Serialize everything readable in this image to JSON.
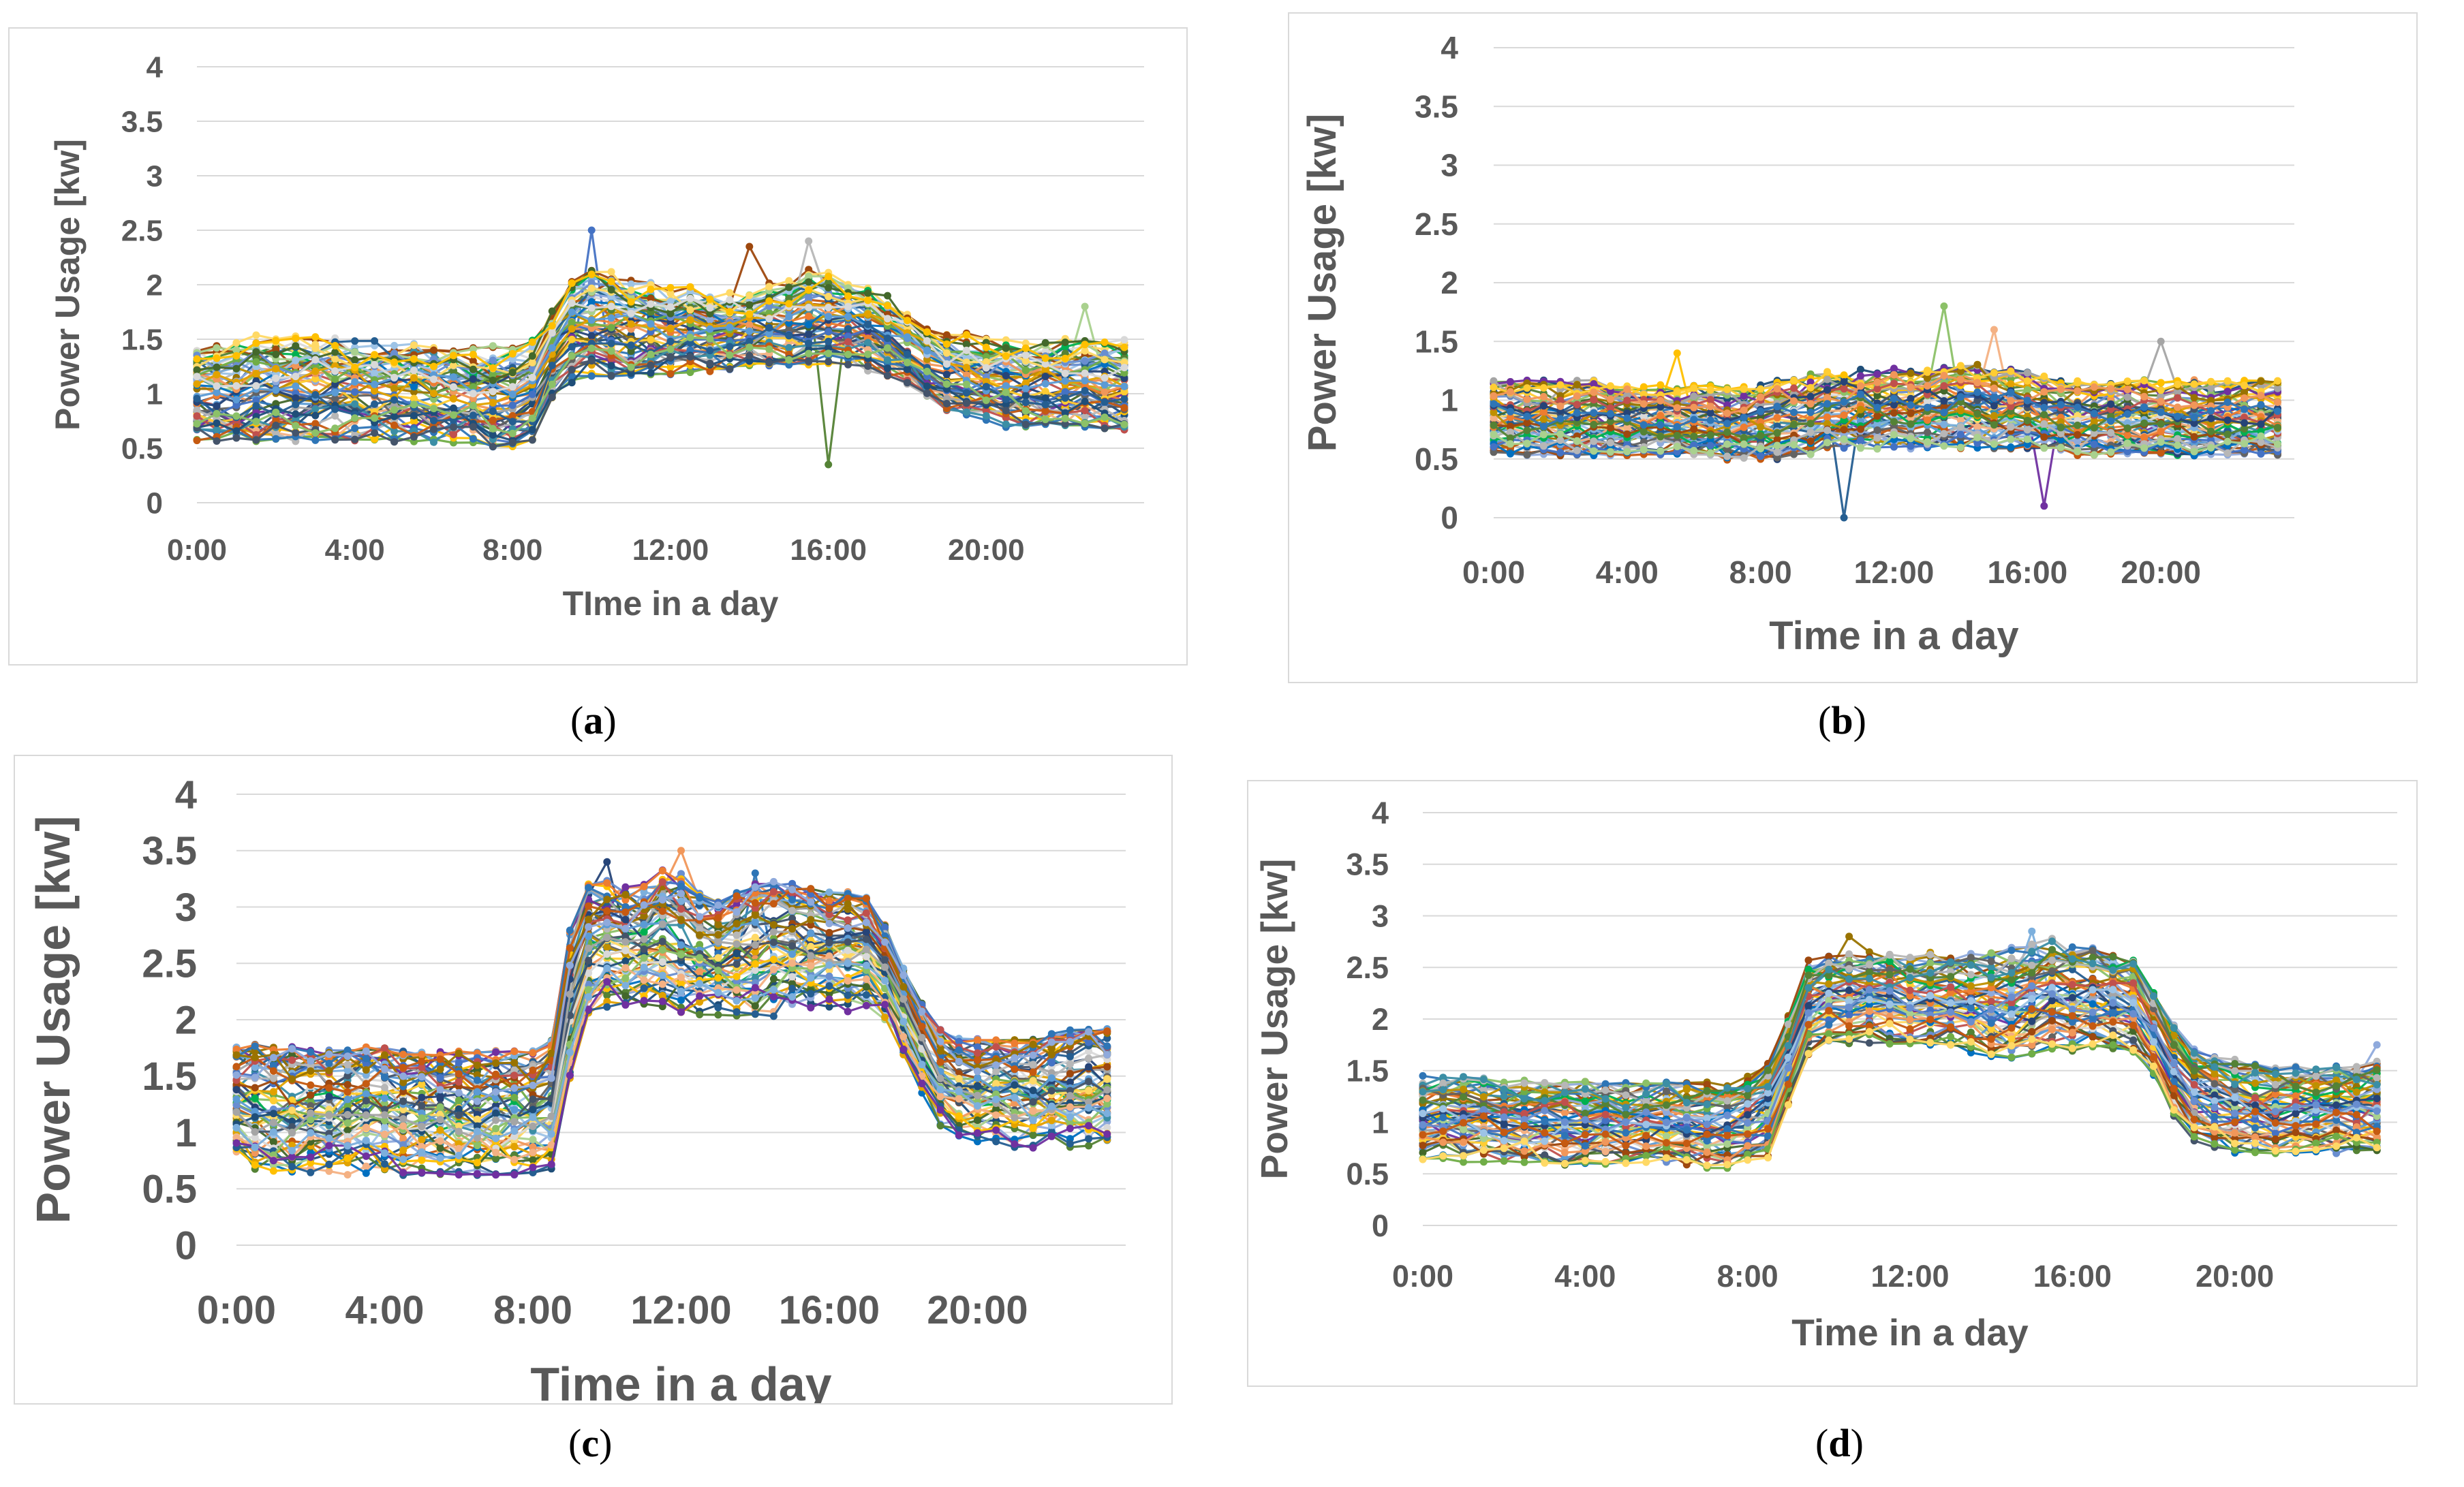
{
  "figure": {
    "captions": [
      {
        "open": "(",
        "letter": "a",
        "close": ")"
      },
      {
        "open": "(",
        "letter": "b",
        "close": ")"
      },
      {
        "open": "(",
        "letter": "c",
        "close": ")"
      },
      {
        "open": "(",
        "letter": "d",
        "close": ")"
      }
    ]
  },
  "chart_data": [
    {
      "id": "a",
      "type": "line",
      "title": "",
      "xlabel": "TIme in a day",
      "ylabel": "Power Usage [kw]",
      "ylim": [
        0,
        4
      ],
      "yticks": [
        "0",
        "0.5",
        "1",
        "1.5",
        "2",
        "2.5",
        "3",
        "3.5",
        "4"
      ],
      "xticks": [
        "0:00",
        "4:00",
        "8:00",
        "12:00",
        "16:00",
        "20:00"
      ],
      "grid": true,
      "legend": "none",
      "series_count": 60,
      "x": [
        "0:00",
        "0:30",
        "1:00",
        "1:30",
        "2:00",
        "2:30",
        "3:00",
        "3:30",
        "4:00",
        "4:30",
        "5:00",
        "5:30",
        "6:00",
        "6:30",
        "7:00",
        "7:30",
        "8:00",
        "8:30",
        "9:00",
        "9:30",
        "10:00",
        "10:30",
        "11:00",
        "11:30",
        "12:00",
        "12:30",
        "13:00",
        "13:30",
        "14:00",
        "14:30",
        "15:00",
        "15:30",
        "16:00",
        "16:30",
        "17:00",
        "17:30",
        "18:00",
        "18:30",
        "19:00",
        "19:30",
        "20:00",
        "20:30",
        "21:00",
        "21:30",
        "22:00",
        "22:30",
        "23:00",
        "23:30"
      ],
      "envelope": {
        "low": [
          0.5,
          0.5,
          0.5,
          0.5,
          0.5,
          0.5,
          0.5,
          0.5,
          0.5,
          0.5,
          0.5,
          0.5,
          0.5,
          0.5,
          0.5,
          0.45,
          0.45,
          0.5,
          0.9,
          1.05,
          1.1,
          1.1,
          1.1,
          1.1,
          1.1,
          1.15,
          1.15,
          1.15,
          1.2,
          1.2,
          1.2,
          1.2,
          1.2,
          1.2,
          1.15,
          1.1,
          1.05,
          0.9,
          0.8,
          0.75,
          0.7,
          0.65,
          0.65,
          0.65,
          0.65,
          0.65,
          0.6,
          0.6
        ],
        "mid": [
          1.05,
          1.05,
          1.05,
          1.05,
          1.05,
          1.05,
          1.05,
          1.05,
          1.05,
          1.05,
          1.05,
          1.05,
          1.0,
          1.0,
          1.0,
          1.0,
          1.0,
          1.05,
          1.35,
          1.5,
          1.55,
          1.6,
          1.6,
          1.6,
          1.6,
          1.6,
          1.6,
          1.65,
          1.65,
          1.65,
          1.7,
          1.7,
          1.7,
          1.7,
          1.65,
          1.55,
          1.45,
          1.35,
          1.25,
          1.2,
          1.15,
          1.1,
          1.1,
          1.1,
          1.1,
          1.1,
          1.1,
          1.1
        ],
        "high": [
          1.5,
          1.5,
          1.55,
          1.6,
          1.6,
          1.6,
          1.6,
          1.6,
          1.55,
          1.55,
          1.55,
          1.55,
          1.5,
          1.5,
          1.5,
          1.5,
          1.5,
          1.55,
          1.85,
          2.2,
          2.25,
          2.2,
          2.1,
          2.1,
          2.05,
          2.05,
          2.0,
          2.0,
          2.05,
          2.1,
          2.15,
          2.2,
          2.2,
          2.1,
          2.1,
          1.95,
          1.8,
          1.65,
          1.6,
          1.6,
          1.55,
          1.55,
          1.55,
          1.55,
          1.55,
          1.55,
          1.55,
          1.55
        ]
      },
      "outliers": [
        {
          "time": "10:00",
          "value": 2.5
        },
        {
          "time": "14:00",
          "value": 2.35
        },
        {
          "time": "15:30",
          "value": 2.4
        },
        {
          "time": "16:00",
          "value": 0.35
        },
        {
          "time": "22:30",
          "value": 1.8
        }
      ]
    },
    {
      "id": "b",
      "type": "line",
      "title": "",
      "xlabel": "Time in a day",
      "ylabel": "Power Usage [kw]",
      "ylim": [
        0,
        4
      ],
      "yticks": [
        "0",
        "0.5",
        "1",
        "1.5",
        "2",
        "2.5",
        "3",
        "3.5",
        "4"
      ],
      "xticks": [
        "0:00",
        "4:00",
        "8:00",
        "12:00",
        "16:00",
        "20:00"
      ],
      "grid": true,
      "legend": "none",
      "series_count": 60,
      "x": [
        "0:00",
        "0:30",
        "1:00",
        "1:30",
        "2:00",
        "2:30",
        "3:00",
        "3:30",
        "4:00",
        "4:30",
        "5:00",
        "5:30",
        "6:00",
        "6:30",
        "7:00",
        "7:30",
        "8:00",
        "8:30",
        "9:00",
        "9:30",
        "10:00",
        "10:30",
        "11:00",
        "11:30",
        "12:00",
        "12:30",
        "13:00",
        "13:30",
        "14:00",
        "14:30",
        "15:00",
        "15:30",
        "16:00",
        "16:30",
        "17:00",
        "17:30",
        "18:00",
        "18:30",
        "19:00",
        "19:30",
        "20:00",
        "20:30",
        "21:00",
        "21:30",
        "22:00",
        "22:30",
        "23:00",
        "23:30"
      ],
      "envelope": {
        "low": [
          0.5,
          0.5,
          0.5,
          0.5,
          0.5,
          0.5,
          0.5,
          0.5,
          0.5,
          0.5,
          0.5,
          0.5,
          0.5,
          0.5,
          0.45,
          0.45,
          0.45,
          0.45,
          0.5,
          0.5,
          0.55,
          0.55,
          0.55,
          0.55,
          0.55,
          0.55,
          0.55,
          0.55,
          0.55,
          0.55,
          0.55,
          0.55,
          0.55,
          0.55,
          0.55,
          0.5,
          0.5,
          0.5,
          0.5,
          0.5,
          0.5,
          0.5,
          0.5,
          0.5,
          0.5,
          0.5,
          0.5,
          0.5
        ],
        "mid": [
          0.85,
          0.85,
          0.85,
          0.85,
          0.85,
          0.85,
          0.85,
          0.85,
          0.85,
          0.85,
          0.85,
          0.85,
          0.85,
          0.85,
          0.85,
          0.85,
          0.85,
          0.85,
          0.9,
          0.9,
          0.95,
          0.95,
          0.95,
          0.95,
          0.95,
          0.95,
          0.95,
          0.95,
          0.95,
          0.95,
          0.95,
          0.95,
          0.9,
          0.9,
          0.9,
          0.85,
          0.85,
          0.85,
          0.85,
          0.85,
          0.85,
          0.85,
          0.85,
          0.85,
          0.85,
          0.85,
          0.85,
          0.85
        ],
        "high": [
          1.2,
          1.2,
          1.2,
          1.2,
          1.2,
          1.2,
          1.2,
          1.15,
          1.15,
          1.15,
          1.15,
          1.15,
          1.15,
          1.15,
          1.15,
          1.15,
          1.15,
          1.2,
          1.2,
          1.25,
          1.3,
          1.3,
          1.3,
          1.3,
          1.3,
          1.3,
          1.3,
          1.35,
          1.35,
          1.35,
          1.3,
          1.3,
          1.3,
          1.25,
          1.2,
          1.2,
          1.2,
          1.2,
          1.2,
          1.2,
          1.2,
          1.2,
          1.2,
          1.2,
          1.2,
          1.2,
          1.2,
          1.2
        ]
      },
      "outliers": [
        {
          "time": "5:30",
          "value": 1.4
        },
        {
          "time": "10:30",
          "value": 0.0
        },
        {
          "time": "13:30",
          "value": 1.8
        },
        {
          "time": "15:00",
          "value": 1.6
        },
        {
          "time": "16:30",
          "value": 0.1
        },
        {
          "time": "20:00",
          "value": 1.5
        }
      ]
    },
    {
      "id": "c",
      "type": "line",
      "title": "",
      "xlabel": "Time in a day",
      "ylabel": "Power Usage [kw]",
      "ylim": [
        0,
        4
      ],
      "yticks": [
        "0",
        "0.5",
        "1",
        "1.5",
        "2",
        "2.5",
        "3",
        "3.5",
        "4"
      ],
      "xticks": [
        "0:00",
        "4:00",
        "8:00",
        "12:00",
        "16:00",
        "20:00"
      ],
      "grid": true,
      "legend": "none",
      "series_count": 60,
      "x": [
        "0:00",
        "0:30",
        "1:00",
        "1:30",
        "2:00",
        "2:30",
        "3:00",
        "3:30",
        "4:00",
        "4:30",
        "5:00",
        "5:30",
        "6:00",
        "6:30",
        "7:00",
        "7:30",
        "8:00",
        "8:30",
        "9:00",
        "9:30",
        "10:00",
        "10:30",
        "11:00",
        "11:30",
        "12:00",
        "12:30",
        "13:00",
        "13:30",
        "14:00",
        "14:30",
        "15:00",
        "15:30",
        "16:00",
        "16:30",
        "17:00",
        "17:30",
        "18:00",
        "18:30",
        "19:00",
        "19:30",
        "20:00",
        "20:30",
        "21:00",
        "21:30",
        "22:00",
        "22:30",
        "23:00",
        "23:30"
      ],
      "envelope": {
        "low": [
          0.7,
          0.6,
          0.55,
          0.55,
          0.55,
          0.55,
          0.55,
          0.55,
          0.55,
          0.55,
          0.55,
          0.55,
          0.55,
          0.55,
          0.55,
          0.55,
          0.55,
          0.6,
          1.4,
          1.9,
          2.0,
          2.0,
          2.0,
          2.0,
          2.0,
          1.95,
          1.95,
          1.95,
          1.95,
          1.95,
          2.0,
          2.0,
          2.0,
          2.0,
          2.0,
          1.9,
          1.6,
          1.3,
          1.0,
          0.9,
          0.85,
          0.85,
          0.8,
          0.8,
          0.8,
          0.8,
          0.8,
          0.8
        ],
        "mid": [
          1.25,
          1.25,
          1.2,
          1.2,
          1.2,
          1.2,
          1.2,
          1.2,
          1.15,
          1.15,
          1.15,
          1.15,
          1.15,
          1.15,
          1.15,
          1.15,
          1.15,
          1.2,
          2.1,
          2.6,
          2.7,
          2.65,
          2.6,
          2.6,
          2.55,
          2.6,
          2.6,
          2.6,
          2.6,
          2.65,
          2.65,
          2.65,
          2.6,
          2.6,
          2.55,
          2.4,
          2.05,
          1.75,
          1.5,
          1.4,
          1.35,
          1.35,
          1.3,
          1.3,
          1.3,
          1.3,
          1.3,
          1.3
        ],
        "high": [
          1.85,
          1.85,
          1.85,
          1.85,
          1.8,
          1.8,
          1.8,
          1.85,
          1.85,
          1.8,
          1.8,
          1.8,
          1.8,
          1.8,
          1.8,
          1.8,
          1.8,
          1.9,
          2.9,
          3.3,
          3.3,
          3.25,
          3.3,
          3.45,
          3.4,
          3.2,
          3.1,
          3.2,
          3.3,
          3.3,
          3.3,
          3.25,
          3.2,
          3.2,
          3.15,
          2.9,
          2.5,
          2.2,
          2.0,
          1.9,
          1.9,
          1.9,
          1.9,
          1.9,
          1.95,
          2.0,
          2.0,
          2.0
        ]
      },
      "outliers": [
        {
          "time": "10:00",
          "value": 3.4
        },
        {
          "time": "12:00",
          "value": 3.5
        },
        {
          "time": "14:00",
          "value": 3.3
        }
      ]
    },
    {
      "id": "d",
      "type": "line",
      "title": "",
      "xlabel": "Time in a day",
      "ylabel": "Power Usage [kw]",
      "ylim": [
        0,
        4
      ],
      "yticks": [
        "0",
        "0.5",
        "1",
        "1.5",
        "2",
        "2.5",
        "3",
        "3.5",
        "4"
      ],
      "xticks": [
        "0:00",
        "4:00",
        "8:00",
        "12:00",
        "16:00",
        "20:00"
      ],
      "grid": true,
      "legend": "none",
      "series_count": 60,
      "x": [
        "0:00",
        "0:30",
        "1:00",
        "1:30",
        "2:00",
        "2:30",
        "3:00",
        "3:30",
        "4:00",
        "4:30",
        "5:00",
        "5:30",
        "6:00",
        "6:30",
        "7:00",
        "7:30",
        "8:00",
        "8:30",
        "9:00",
        "9:30",
        "10:00",
        "10:30",
        "11:00",
        "11:30",
        "12:00",
        "12:30",
        "13:00",
        "13:30",
        "14:00",
        "14:30",
        "15:00",
        "15:30",
        "16:00",
        "16:30",
        "17:00",
        "17:30",
        "18:00",
        "18:30",
        "19:00",
        "19:30",
        "20:00",
        "20:30",
        "21:00",
        "21:30",
        "22:00",
        "22:30",
        "23:00",
        "23:30"
      ],
      "envelope": {
        "low": [
          0.6,
          0.6,
          0.55,
          0.55,
          0.55,
          0.55,
          0.55,
          0.55,
          0.55,
          0.55,
          0.55,
          0.55,
          0.55,
          0.55,
          0.5,
          0.5,
          0.55,
          0.6,
          1.1,
          1.6,
          1.7,
          1.7,
          1.7,
          1.7,
          1.7,
          1.65,
          1.65,
          1.6,
          1.55,
          1.5,
          1.55,
          1.6,
          1.6,
          1.65,
          1.65,
          1.6,
          1.4,
          1.0,
          0.75,
          0.7,
          0.65,
          0.65,
          0.65,
          0.65,
          0.65,
          0.65,
          0.65,
          0.65
        ],
        "mid": [
          1.0,
          1.0,
          1.0,
          1.0,
          1.0,
          1.0,
          1.0,
          0.95,
          0.95,
          0.95,
          0.95,
          0.95,
          0.95,
          0.95,
          0.95,
          0.95,
          1.0,
          1.1,
          1.6,
          2.1,
          2.2,
          2.25,
          2.2,
          2.2,
          2.15,
          2.2,
          2.2,
          2.2,
          2.2,
          2.25,
          2.25,
          2.3,
          2.3,
          2.25,
          2.2,
          2.15,
          1.9,
          1.55,
          1.3,
          1.2,
          1.15,
          1.15,
          1.1,
          1.1,
          1.1,
          1.1,
          1.1,
          1.1
        ],
        "high": [
          1.5,
          1.5,
          1.5,
          1.5,
          1.45,
          1.45,
          1.45,
          1.45,
          1.45,
          1.45,
          1.45,
          1.45,
          1.45,
          1.45,
          1.45,
          1.45,
          1.5,
          1.65,
          2.1,
          2.65,
          2.7,
          2.7,
          2.7,
          2.7,
          2.65,
          2.7,
          2.7,
          2.7,
          2.7,
          2.75,
          2.8,
          2.85,
          2.8,
          2.75,
          2.7,
          2.65,
          2.3,
          2.0,
          1.8,
          1.75,
          1.7,
          1.65,
          1.6,
          1.6,
          1.6,
          1.6,
          1.6,
          1.65
        ]
      },
      "outliers": [
        {
          "time": "10:30",
          "value": 2.8
        },
        {
          "time": "15:00",
          "value": 2.85
        },
        {
          "time": "23:30",
          "value": 1.75
        }
      ]
    }
  ],
  "palette": [
    "#4472c4",
    "#ed7d31",
    "#a5a5a5",
    "#ffc000",
    "#5b9bd5",
    "#70ad47",
    "#264478",
    "#9e480e",
    "#636363",
    "#997300",
    "#255e91",
    "#43682b",
    "#698ed0",
    "#f1975a",
    "#b7b7b7",
    "#ffcd33",
    "#7cafdd",
    "#8cc168",
    "#1f4e79",
    "#c55a11",
    "#2e75b6",
    "#548235",
    "#bf9000",
    "#8faadc",
    "#f4b183",
    "#d9d9d9",
    "#ffd966",
    "#9dc3e6",
    "#a9d18e",
    "#0070c0",
    "#00b050",
    "#7030a0",
    "#44546a",
    "#e2a200",
    "#3b8ea5",
    "#c0504d"
  ]
}
